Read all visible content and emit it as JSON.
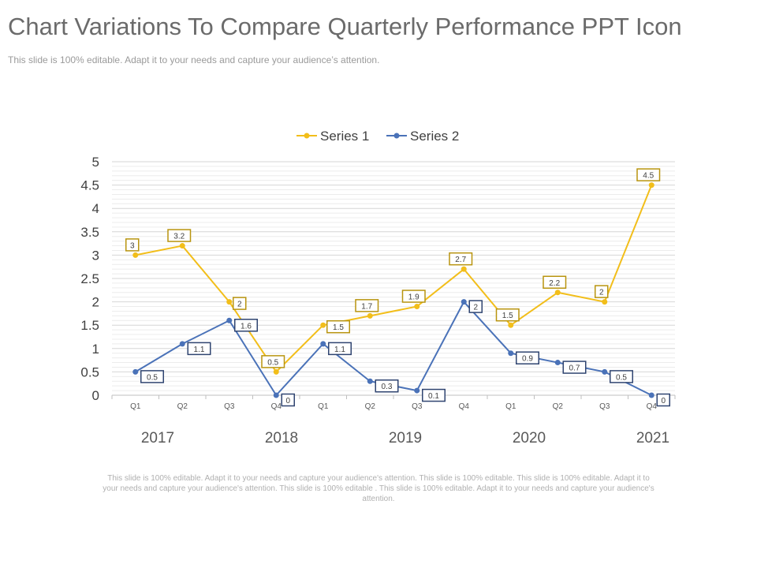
{
  "slide": {
    "title": "Chart Variations To Compare Quarterly Performance PPT Icon",
    "subtitle": "This slide is 100% editable. Adapt it to your needs and capture your audience’s attention.",
    "footer": "This slide is 100% editable. Adapt it to your needs and capture your audience's attention. This slide is 100% editable. This slide is 100% editable. Adapt it to your needs and capture your audience's attention. This slide is 100% editable . This slide is 100% editable. Adapt it to your needs and capture your audience's attention."
  },
  "chart_data": {
    "type": "line",
    "categories": [
      "Q1",
      "Q2",
      "Q3",
      "Q4",
      "Q1",
      "Q2",
      "Q3",
      "Q4",
      "Q1",
      "Q2",
      "Q3",
      "Q4"
    ],
    "year_labels": [
      "2017",
      "2018",
      "2019",
      "2020",
      "2021"
    ],
    "series": [
      {
        "name": "Series 1",
        "color": "#F2BE1A",
        "values": [
          3,
          3.2,
          2,
          0.5,
          1.5,
          1.7,
          1.9,
          2.7,
          1.5,
          2.2,
          2,
          4.5
        ],
        "data_labels": [
          "3",
          "3.2",
          "2",
          "0.5",
          "1.5",
          "1.7",
          "1.9",
          "2.7",
          "1.5",
          "2.2",
          "2",
          "4.5"
        ]
      },
      {
        "name": "Series 2",
        "color": "#4A72B8",
        "values": [
          0.5,
          1.1,
          1.6,
          0,
          1.1,
          0.3,
          0.1,
          2,
          0.9,
          0.7,
          0.5,
          0
        ],
        "data_labels": [
          "0.5",
          "1.1",
          "1.6",
          "0",
          "1.1",
          "0.3",
          "0.1",
          "2",
          "0.9",
          "0.7",
          "0.5",
          "0"
        ]
      }
    ],
    "y_ticks": [
      "0",
      "0.5",
      "1",
      "1.5",
      "2",
      "2.5",
      "3",
      "3.5",
      "4",
      "4.5",
      "5"
    ],
    "ylim": [
      0,
      5
    ],
    "grid": true,
    "legend": "top-center",
    "label_border_colors": {
      "Series 1": "#B8940F",
      "Series 2": "#2F4470"
    }
  }
}
